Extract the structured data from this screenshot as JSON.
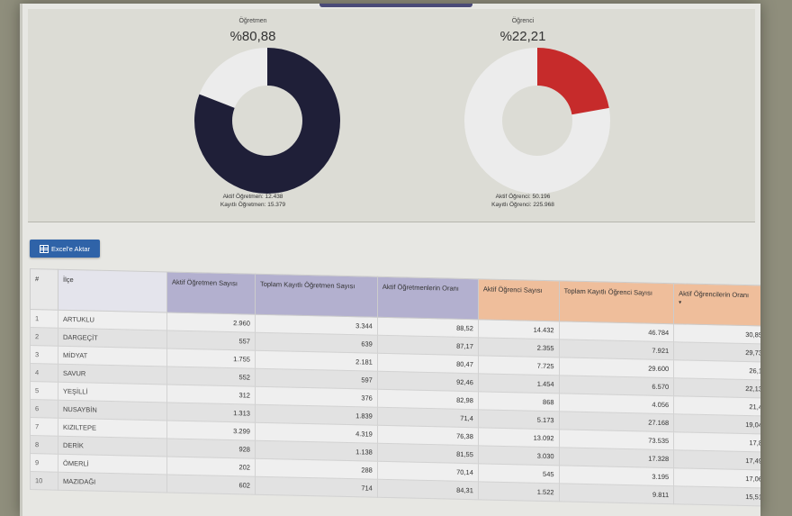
{
  "teacher_chart": {
    "title": "Öğretmen",
    "percent": "%80,88",
    "legend_active": "Aktif Öğretmen: 12.438",
    "legend_total": "Kayıtlı Öğretmen: 15.379",
    "fraction": 0.8088,
    "filled_color": "#1f1f38",
    "empty_color": "#ececec"
  },
  "student_chart": {
    "title": "Öğrenci",
    "percent": "%22,21",
    "legend_active": "Aktif Öğrenci: 50.196",
    "legend_total": "Kayıtlı Öğrenci: 225.968",
    "fraction": 0.2221,
    "filled_color": "#c62b2b",
    "empty_color": "#ececec"
  },
  "toolbar": {
    "excel_label": "Excel'e Aktar",
    "excel_icon": "table-icon"
  },
  "table": {
    "headers": {
      "hash": "#",
      "ilce": "İlçe",
      "active_teachers": "Aktif Öğretmen Sayısı",
      "total_teachers": "Toplam Kayıtlı Öğretmen Sayısı",
      "teacher_ratio": "Aktif Öğretmenlerin Oranı",
      "active_students": "Aktif Öğrenci Sayısı",
      "total_students": "Toplam Kayıtlı Öğrenci Sayısı",
      "student_ratio": "Aktif Öğrencilerin Oranı",
      "sort_icon": "▾"
    },
    "rows": [
      {
        "n": "1",
        "ilce": "ARTUKLU",
        "at": "2.960",
        "tt": "3.344",
        "tr": "88,52",
        "as": "14.432",
        "ts": "46.784",
        "sr": "30,85"
      },
      {
        "n": "2",
        "ilce": "DARGEÇİT",
        "at": "557",
        "tt": "639",
        "tr": "87,17",
        "as": "2.355",
        "ts": "7.921",
        "sr": "29,73"
      },
      {
        "n": "3",
        "ilce": "MİDYAT",
        "at": "1.755",
        "tt": "2.181",
        "tr": "80,47",
        "as": "7.725",
        "ts": "29.600",
        "sr": "26,1"
      },
      {
        "n": "4",
        "ilce": "SAVUR",
        "at": "552",
        "tt": "597",
        "tr": "92,46",
        "as": "1.454",
        "ts": "6.570",
        "sr": "22,13"
      },
      {
        "n": "5",
        "ilce": "YEŞİLLİ",
        "at": "312",
        "tt": "376",
        "tr": "82,98",
        "as": "868",
        "ts": "4.056",
        "sr": "21,4"
      },
      {
        "n": "6",
        "ilce": "NUSAYBİN",
        "at": "1.313",
        "tt": "1.839",
        "tr": "71,4",
        "as": "5.173",
        "ts": "27.168",
        "sr": "19,04"
      },
      {
        "n": "7",
        "ilce": "KIZILTEPE",
        "at": "3.299",
        "tt": "4.319",
        "tr": "76,38",
        "as": "13.092",
        "ts": "73.535",
        "sr": "17,8"
      },
      {
        "n": "8",
        "ilce": "DERİK",
        "at": "928",
        "tt": "1.138",
        "tr": "81,55",
        "as": "3.030",
        "ts": "17.328",
        "sr": "17,49"
      },
      {
        "n": "9",
        "ilce": "ÖMERLİ",
        "at": "202",
        "tt": "288",
        "tr": "70,14",
        "as": "545",
        "ts": "3.195",
        "sr": "17,06"
      },
      {
        "n": "10",
        "ilce": "MAZIDAĞI",
        "at": "602",
        "tt": "714",
        "tr": "84,31",
        "as": "1.522",
        "ts": "9.811",
        "sr": "15,51"
      }
    ]
  }
}
